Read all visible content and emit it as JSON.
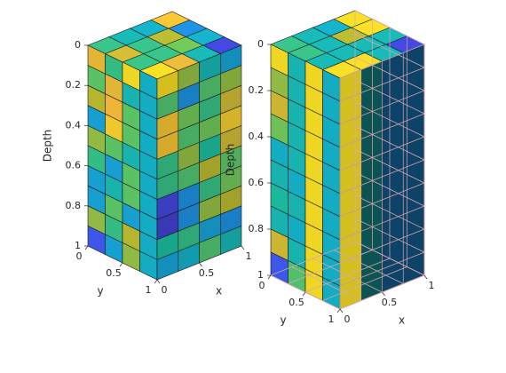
{
  "chart_data": [
    {
      "type": "voxel-3d",
      "view": "solid",
      "zlabel": "Depth",
      "xlabel": "x",
      "ylabel": "y",
      "z_ticks": [
        "0",
        "0.2",
        "0.4",
        "0.6",
        "0.8",
        "1"
      ],
      "x_ticks": [
        "0",
        "0.5",
        "1"
      ],
      "y_ticks": [
        "0",
        "0.5",
        "1"
      ],
      "zlim": [
        0,
        1
      ],
      "xlim": [
        0,
        1
      ],
      "ylim": [
        0,
        1
      ],
      "z_reversed": true,
      "grid": {
        "nx": 4,
        "ny": 4,
        "nz": 10
      },
      "colormap": "parula",
      "left_face_values": [
        [
          0.85,
          0.55,
          0.95,
          0.4
        ],
        [
          0.62,
          0.85,
          0.45,
          0.4
        ],
        [
          0.75,
          0.88,
          0.62,
          0.4
        ],
        [
          0.35,
          0.92,
          0.62,
          0.4
        ],
        [
          0.7,
          0.62,
          0.45,
          0.4
        ],
        [
          0.55,
          0.35,
          0.62,
          0.4
        ],
        [
          0.35,
          0.45,
          0.62,
          0.4
        ],
        [
          0.35,
          0.62,
          0.35,
          0.4
        ],
        [
          0.7,
          0.55,
          0.75,
          0.4
        ],
        [
          0.15,
          0.35,
          0.7,
          0.4
        ]
      ],
      "front_face_values": [
        [
          0.95,
          0.7,
          0.45,
          0.35
        ],
        [
          0.6,
          0.3,
          0.6,
          0.7
        ],
        [
          0.9,
          0.65,
          0.55,
          0.8
        ],
        [
          0.9,
          0.6,
          0.65,
          0.92
        ],
        [
          0.55,
          0.7,
          0.5,
          0.8
        ],
        [
          0.55,
          0.6,
          0.75,
          0.62
        ],
        [
          0.1,
          0.3,
          0.55,
          0.65
        ],
        [
          0.08,
          0.3,
          0.7,
          0.75
        ],
        [
          0.5,
          0.55,
          0.35,
          0.3
        ],
        [
          0.35,
          0.4,
          0.6,
          0.45
        ]
      ],
      "top_face_values": [
        [
          0.95,
          0.85,
          0.45,
          0.1
        ],
        [
          0.55,
          0.55,
          0.65,
          0.4
        ],
        [
          0.8,
          0.55,
          0.75,
          0.3
        ],
        [
          0.55,
          0.45,
          0.4,
          0.9
        ]
      ]
    },
    {
      "type": "voxel-3d",
      "view": "cutaway",
      "zlabel": "Depth",
      "xlabel": "x",
      "ylabel": "y",
      "z_ticks": [
        "0",
        "0.2",
        "0.4",
        "0.6",
        "0.8",
        "1"
      ],
      "x_ticks": [
        "0",
        "0.5",
        "1"
      ],
      "y_ticks": [
        "0",
        "0.5",
        "1"
      ],
      "zlim": [
        0,
        1
      ],
      "xlim": [
        0,
        1
      ],
      "ylim": [
        0,
        1
      ],
      "z_reversed": true,
      "grid": {
        "nx": 4,
        "ny": 4,
        "nz": 10
      },
      "colormap": "parula",
      "left_face_values": [
        [
          0.95,
          0.45,
          0.95,
          0.4
        ],
        [
          0.7,
          0.45,
          0.95,
          0.4
        ],
        [
          0.8,
          0.45,
          0.95,
          0.4
        ],
        [
          0.65,
          0.45,
          0.95,
          0.4
        ],
        [
          0.4,
          0.45,
          0.95,
          0.4
        ],
        [
          0.45,
          0.4,
          0.95,
          0.4
        ],
        [
          0.5,
          0.45,
          0.95,
          0.4
        ],
        [
          0.45,
          0.4,
          0.95,
          0.4
        ],
        [
          0.8,
          0.45,
          0.95,
          0.4
        ],
        [
          0.15,
          0.6,
          0.95,
          0.4
        ]
      ],
      "front_face_values": [
        [
          0.95,
          0.45,
          0.3,
          0.3
        ],
        [
          0.95,
          0.45,
          0.3,
          0.3
        ],
        [
          0.95,
          0.45,
          0.3,
          0.3
        ],
        [
          0.95,
          0.45,
          0.3,
          0.3
        ],
        [
          0.95,
          0.45,
          0.3,
          0.3
        ],
        [
          0.95,
          0.45,
          0.3,
          0.3
        ],
        [
          0.95,
          0.45,
          0.3,
          0.3
        ],
        [
          0.95,
          0.45,
          0.3,
          0.3
        ],
        [
          0.95,
          0.45,
          0.3,
          0.3
        ],
        [
          0.95,
          0.45,
          0.3,
          0.3
        ]
      ],
      "top_face_values": [
        [
          0.95,
          0.95,
          0.45,
          0.1
        ],
        [
          0.45,
          0.45,
          0.45,
          0.45
        ],
        [
          0.55,
          0.45,
          0.75,
          0.95
        ],
        [
          0.55,
          0.45,
          0.4,
          0.95
        ]
      ]
    }
  ]
}
